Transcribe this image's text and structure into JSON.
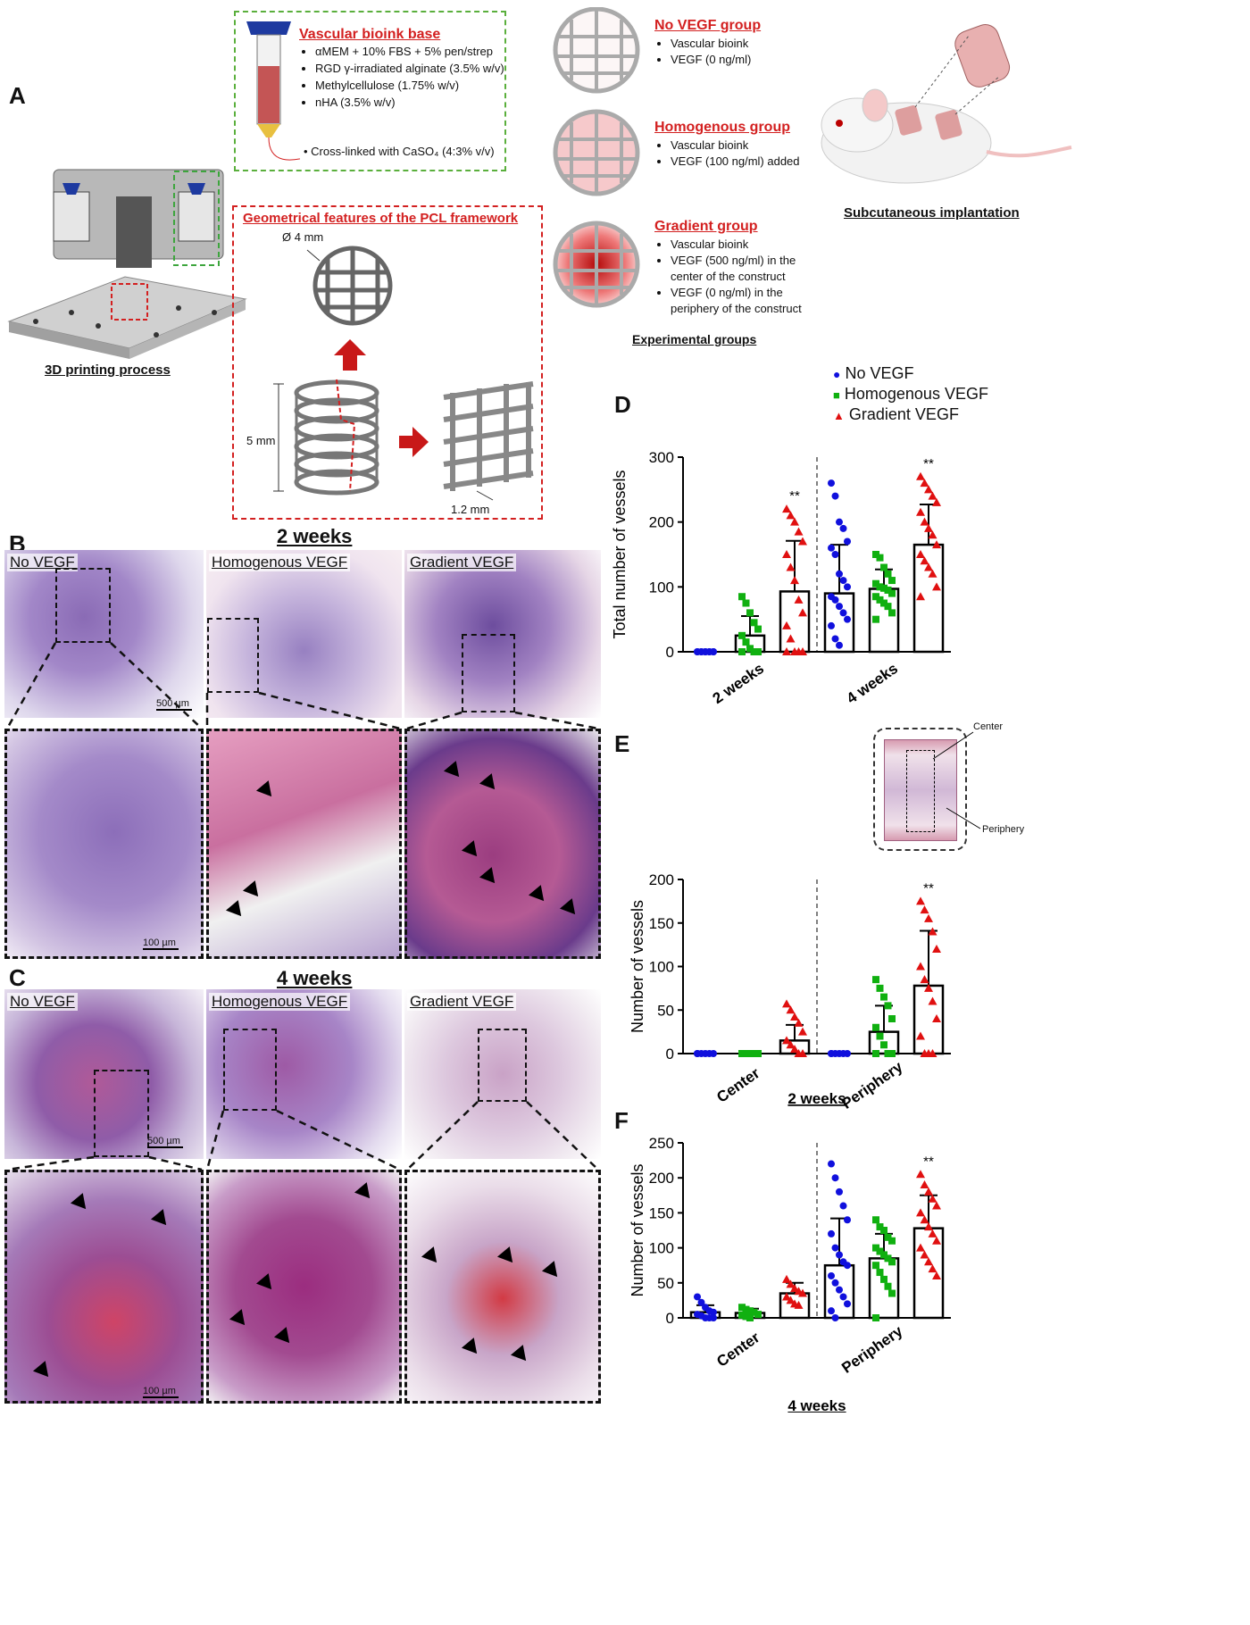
{
  "panels": {
    "A": "A",
    "B": "B",
    "C": "C",
    "D": "D",
    "E": "E",
    "F": "F"
  },
  "printing": {
    "caption": "3D printing process"
  },
  "bioink": {
    "title": "Vascular bioink base",
    "items": [
      "αMEM + 10% FBS + 5% pen/strep",
      "RGD γ-irradiated alginate (3.5% w/v)",
      "Methylcellulose (1.75% w/v)",
      "nHA (3.5% w/v)"
    ],
    "crosslink": "Cross-linked with CaSO₄ (4:3% v/v)"
  },
  "framework": {
    "title": "Geometrical features of the PCL framework",
    "diameter": "Ø 4 mm",
    "height": "5 mm",
    "spacing": "1.2 mm"
  },
  "groups": {
    "caption": "Experimental groups",
    "list": [
      {
        "title": "No VEGF group",
        "items": [
          "Vascular bioink",
          "VEGF (0 ng/ml)"
        ]
      },
      {
        "title": "Homogenous group",
        "items": [
          "Vascular bioink",
          "VEGF (100 ng/ml) added"
        ]
      },
      {
        "title": "Gradient group",
        "items": [
          "Vascular bioink",
          "VEGF (500 ng/ml) in the center of the construct",
          "VEGF (0 ng/ml) in the periphery of the construct"
        ]
      }
    ]
  },
  "implant": {
    "caption": "Subcutaneous implantation"
  },
  "histology": {
    "week2": "2 weeks",
    "week4": "4 weeks",
    "titles": [
      "No VEGF",
      "Homogenous VEGF",
      "Gradient VEGF"
    ],
    "scale_low": "500 µm",
    "scale_high": "100 µm"
  },
  "legend": [
    "No VEGF",
    "Homogenous VEGF",
    "Gradient VEGF"
  ],
  "colors": {
    "no": "#1010dd",
    "homo": "#10b010",
    "grad": "#e01010",
    "red": "#d32020"
  },
  "inset": {
    "center": "Center",
    "periphery": "Periphery"
  },
  "chart_data": [
    {
      "id": "D",
      "type": "bar",
      "ylabel": "Total number of vessels",
      "ylim": [
        0,
        300
      ],
      "yticks": [
        0,
        100,
        200,
        300
      ],
      "categories": [
        "2 weeks",
        "4 weeks"
      ],
      "series": [
        {
          "name": "No VEGF",
          "values": [
            0,
            90
          ],
          "sd": [
            0,
            75
          ],
          "points": [
            [
              0,
              0,
              0,
              0,
              0,
              0,
              0,
              0,
              0,
              0
            ],
            [
              260,
              240,
              200,
              190,
              170,
              160,
              150,
              120,
              110,
              100,
              85,
              80,
              70,
              60,
              50,
              40,
              20,
              10
            ]
          ]
        },
        {
          "name": "Homogenous VEGF",
          "values": [
            25,
            97
          ],
          "sd": [
            30,
            30
          ],
          "points": [
            [
              85,
              75,
              60,
              45,
              35,
              25,
              15,
              5,
              0,
              0,
              0
            ],
            [
              150,
              145,
              130,
              120,
              110,
              105,
              100,
              98,
              95,
              90,
              85,
              80,
              75,
              70,
              60,
              50
            ]
          ]
        },
        {
          "name": "Gradient VEGF",
          "values": [
            93,
            165
          ],
          "sd": [
            78,
            62
          ],
          "points": [
            [
              220,
              210,
              200,
              185,
              170,
              150,
              130,
              110,
              80,
              60,
              40,
              20,
              0,
              0,
              0,
              0
            ],
            [
              270,
              260,
              250,
              240,
              230,
              215,
              200,
              190,
              180,
              165,
              150,
              140,
              130,
              120,
              100,
              85
            ]
          ]
        }
      ],
      "annotations": [
        "**",
        "**"
      ]
    },
    {
      "id": "E",
      "type": "bar",
      "ylabel": "Number of vessels",
      "ylim": [
        0,
        200
      ],
      "yticks": [
        0,
        50,
        100,
        150,
        200
      ],
      "categories": [
        "Center",
        "Periphery"
      ],
      "xlabel": "2 weeks",
      "series": [
        {
          "name": "No VEGF",
          "values": [
            0,
            0
          ],
          "sd": [
            0,
            0
          ],
          "points": [
            [
              0,
              0,
              0,
              0,
              0,
              0
            ],
            [
              0,
              0,
              0,
              0,
              0,
              0
            ]
          ]
        },
        {
          "name": "Homogenous VEGF",
          "values": [
            0,
            25
          ],
          "sd": [
            0,
            30
          ],
          "points": [
            [
              0,
              0,
              0,
              0,
              0,
              0
            ],
            [
              85,
              75,
              65,
              55,
              40,
              30,
              20,
              10,
              0,
              0,
              0
            ]
          ]
        },
        {
          "name": "Gradient VEGF",
          "values": [
            15,
            78
          ],
          "sd": [
            18,
            63
          ],
          "points": [
            [
              57,
              50,
              42,
              35,
              25,
              15,
              10,
              5,
              0,
              0
            ],
            [
              175,
              165,
              155,
              140,
              120,
              100,
              85,
              75,
              60,
              40,
              20,
              0,
              0,
              0
            ]
          ]
        }
      ],
      "annotations": [
        "**"
      ]
    },
    {
      "id": "F",
      "type": "bar",
      "ylabel": "Number of vessels",
      "ylim": [
        0,
        250
      ],
      "yticks": [
        0,
        50,
        100,
        150,
        200,
        250
      ],
      "categories": [
        "Center",
        "Periphery"
      ],
      "xlabel": "4 weeks",
      "series": [
        {
          "name": "No VEGF",
          "values": [
            8,
            75
          ],
          "sd": [
            10,
            67
          ],
          "points": [
            [
              30,
              22,
              15,
              10,
              8,
              5,
              3,
              0,
              0,
              0
            ],
            [
              220,
              200,
              180,
              160,
              140,
              120,
              100,
              90,
              80,
              75,
              60,
              50,
              40,
              30,
              20,
              10,
              0
            ]
          ]
        },
        {
          "name": "Homogenous VEGF",
          "values": [
            7,
            85
          ],
          "sd": [
            6,
            35
          ],
          "points": [
            [
              15,
              12,
              10,
              8,
              5,
              4,
              2,
              0
            ],
            [
              140,
              130,
              125,
              115,
              110,
              100,
              95,
              90,
              85,
              80,
              75,
              65,
              55,
              45,
              35,
              0
            ]
          ]
        },
        {
          "name": "Gradient VEGF",
          "values": [
            35,
            128
          ],
          "sd": [
            15,
            47
          ],
          "points": [
            [
              55,
              48,
              42,
              38,
              35,
              30,
              25,
              20,
              18
            ],
            [
              205,
              190,
              180,
              170,
              160,
              150,
              140,
              130,
              120,
              110,
              100,
              90,
              80,
              70,
              60
            ]
          ]
        }
      ],
      "annotations": [
        "**"
      ]
    }
  ]
}
